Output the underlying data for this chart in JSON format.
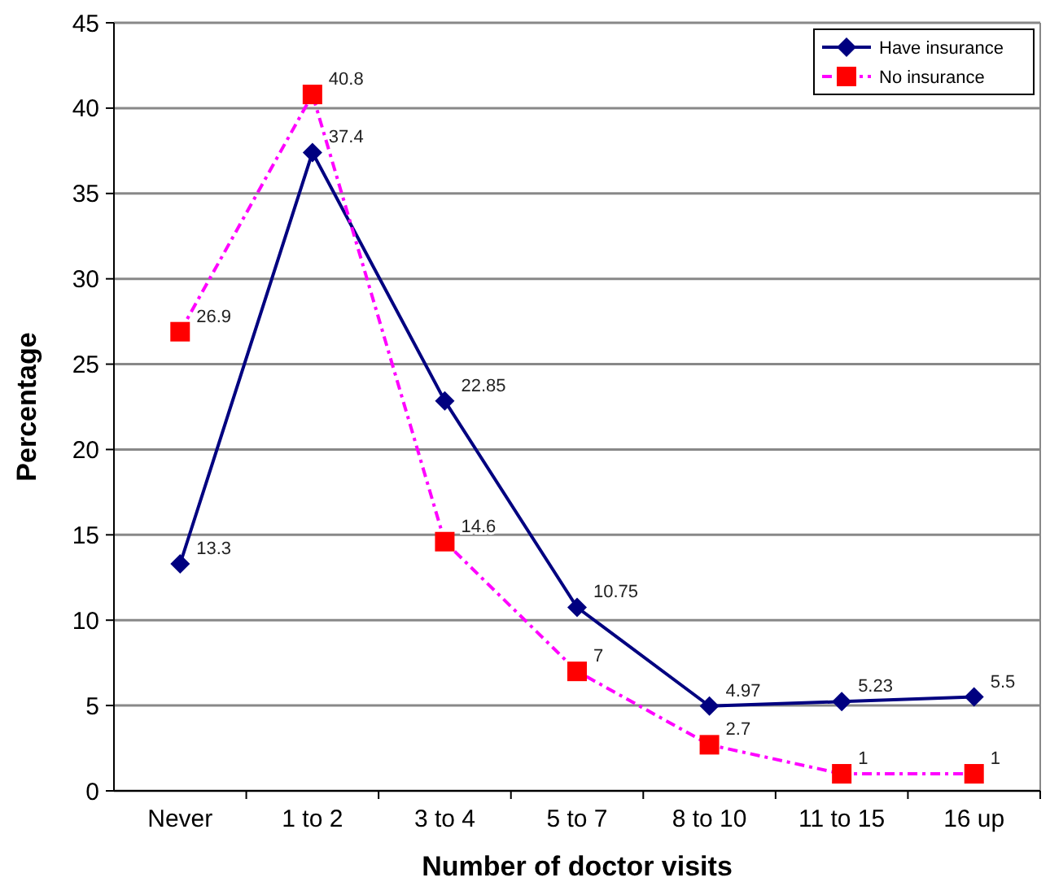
{
  "chart_data": {
    "type": "line",
    "xlabel": "Number of doctor visits",
    "ylabel": "Percentage",
    "categories": [
      "Never",
      "1 to 2",
      "3 to 4",
      "5 to 7",
      "8 to 10",
      "11 to 15",
      "16 up"
    ],
    "series": [
      {
        "name": "Have insurance",
        "color": "#000080",
        "marker": "diamond",
        "line_style": "solid",
        "values": [
          13.3,
          37.4,
          22.85,
          10.75,
          4.97,
          5.23,
          5.5
        ]
      },
      {
        "name": "No insurance",
        "color": "#ff00ff",
        "colors": [
          "#ff0000",
          "#ff0000",
          "#ff0000",
          "#ff0000",
          "#ff0000",
          "#ff0000",
          "#ff0000"
        ],
        "marker": "square",
        "line_style": "dashdot",
        "values": [
          26.9,
          40.8,
          14.6,
          7,
          2.7,
          1,
          1
        ]
      }
    ],
    "ylim": [
      0,
      45
    ],
    "yticks": [
      0,
      5,
      10,
      15,
      20,
      25,
      30,
      35,
      40,
      45
    ],
    "grid": "y",
    "legend": "top right",
    "data_labels": true
  }
}
